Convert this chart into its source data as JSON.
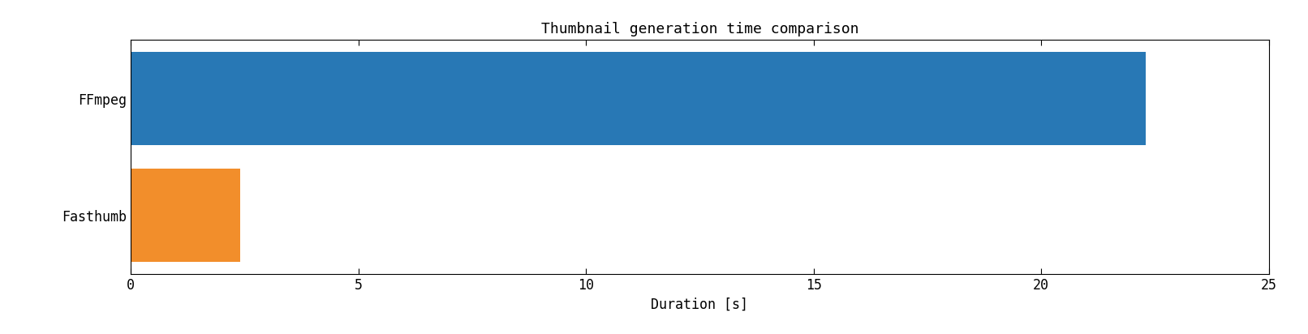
{
  "title": "Thumbnail generation time comparison",
  "categories": [
    "FFmpeg",
    "Fasthumb"
  ],
  "values": [
    22.3,
    2.4
  ],
  "colors": [
    "#2878b5",
    "#f28e2b"
  ],
  "xlabel": "Duration [s]",
  "xlim": [
    0,
    25
  ],
  "xticks": [
    0,
    5,
    10,
    15,
    20,
    25
  ],
  "title_fontsize": 13,
  "label_fontsize": 12,
  "tick_fontsize": 12,
  "bar_height": 0.8,
  "figsize": [
    16.12,
    4.12
  ],
  "dpi": 100
}
